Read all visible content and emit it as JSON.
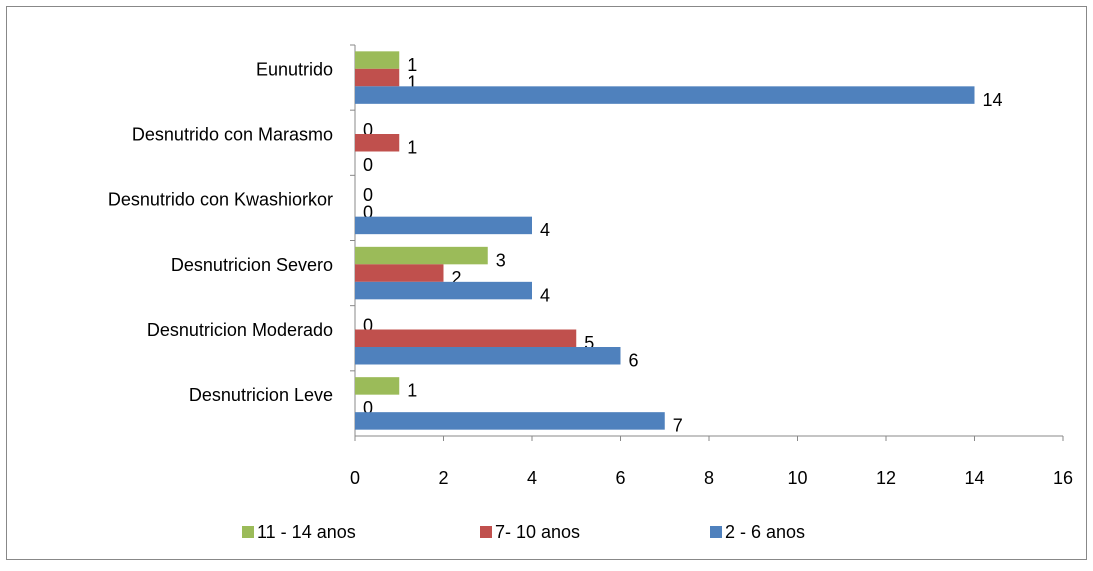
{
  "chart_data": {
    "type": "bar",
    "orientation": "horizontal",
    "categories": [
      "Eunutrido",
      "Desnutrido con Marasmo",
      "Desnutrido con Kwashiorkor",
      "Desnutricion Severo",
      "Desnutricion Moderado",
      "Desnutricion Leve"
    ],
    "series": [
      {
        "name": "11 - 14 anos",
        "color": "#9bbb59",
        "values": [
          1,
          0,
          0,
          3,
          0,
          1
        ]
      },
      {
        "name": "7- 10 anos",
        "color": "#c0504d",
        "values": [
          1,
          1,
          0,
          2,
          5,
          0
        ]
      },
      {
        "name": "2 - 6 anos",
        "color": "#4f81bd",
        "values": [
          14,
          0,
          4,
          4,
          6,
          7
        ]
      }
    ],
    "xlim": [
      0,
      16
    ],
    "xticks": [
      0,
      2,
      4,
      6,
      8,
      10,
      12,
      14,
      16
    ],
    "legend": "bottom"
  }
}
